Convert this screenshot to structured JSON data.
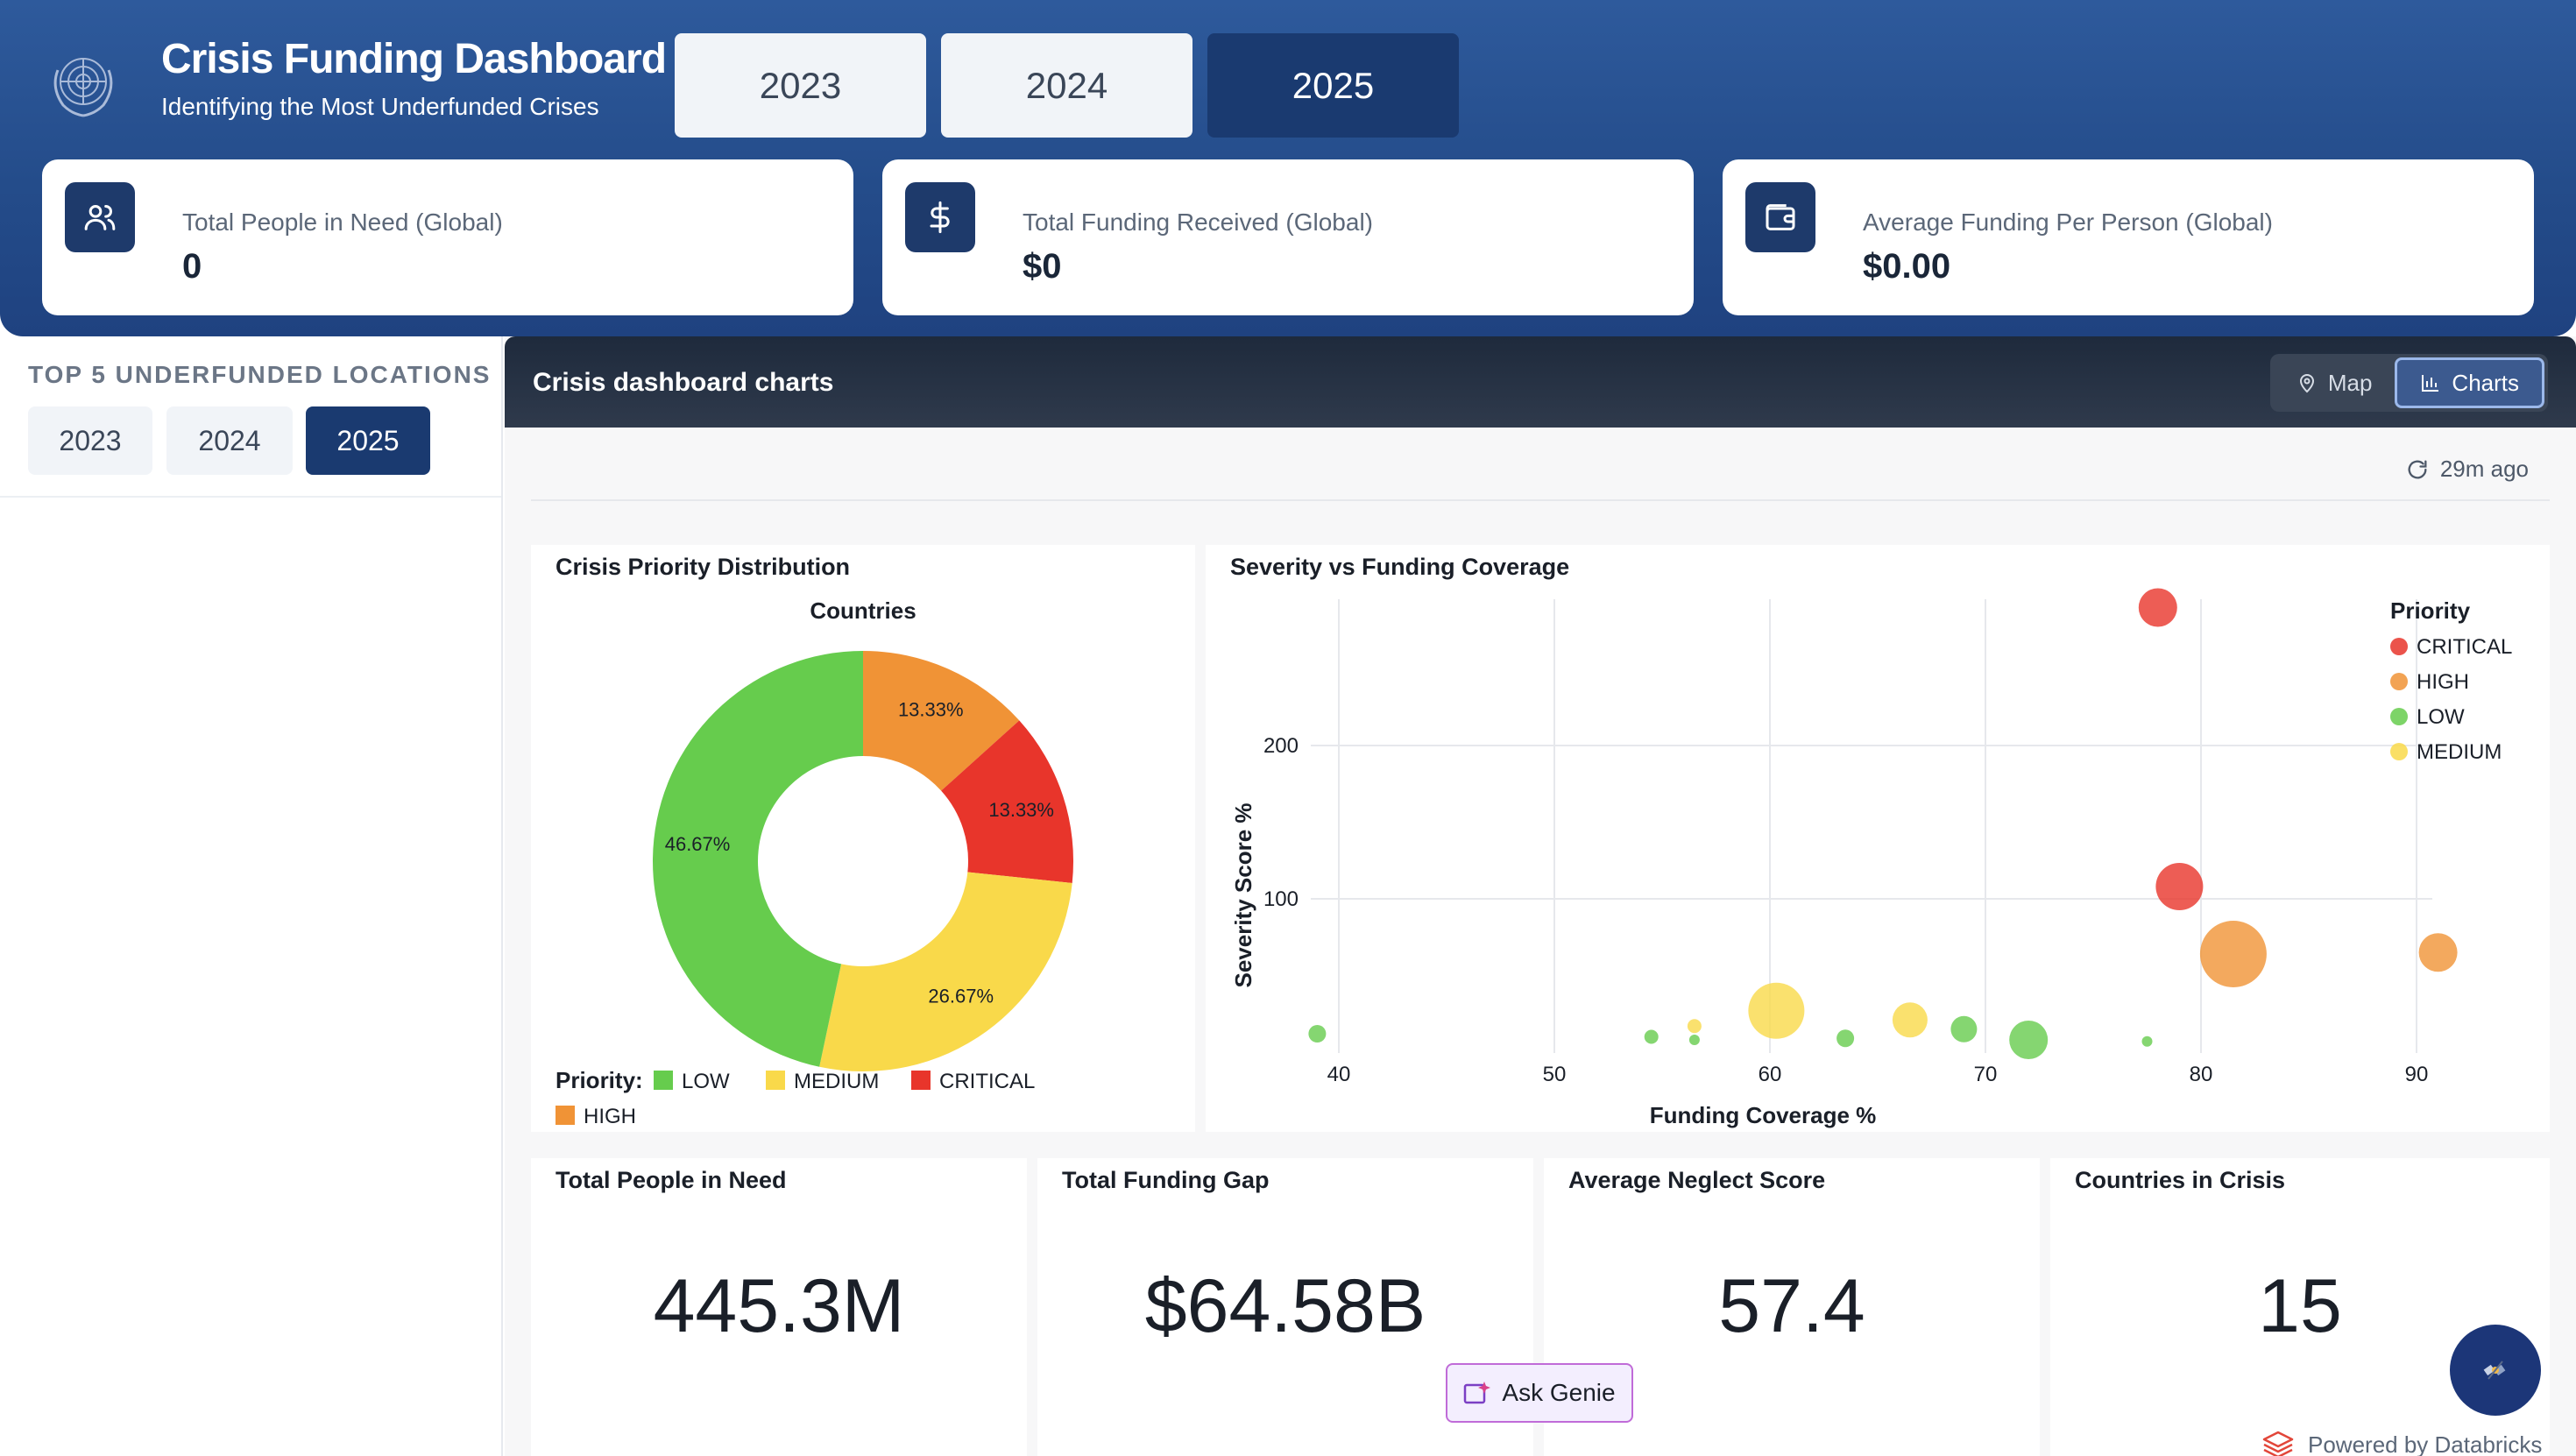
{
  "header": {
    "title": "Crisis Funding Dashboard",
    "subtitle": "Identifying the Most Underfunded Crises",
    "year_tabs": [
      {
        "label": "2023",
        "active": false
      },
      {
        "label": "2024",
        "active": false
      },
      {
        "label": "2025",
        "active": true
      }
    ]
  },
  "stats": [
    {
      "icon": "users-icon",
      "label": "Total People in Need (Global)",
      "value": "0"
    },
    {
      "icon": "dollar-icon",
      "label": "Total Funding Received (Global)",
      "value": "$0"
    },
    {
      "icon": "wallet-icon",
      "label": "Average Funding Per Person (Global)",
      "value": "$0.00"
    }
  ],
  "sidebar": {
    "title": "TOP 5 UNDERFUNDED LOCATIONS",
    "year_tabs": [
      {
        "label": "2023",
        "active": false
      },
      {
        "label": "2024",
        "active": false
      },
      {
        "label": "2025",
        "active": true
      }
    ]
  },
  "main": {
    "title": "Crisis dashboard charts",
    "toggle": {
      "map_label": "Map",
      "charts_label": "Charts",
      "active": "Charts"
    },
    "refresh_label": "29m ago"
  },
  "colors": {
    "LOW": "#66cc4d",
    "MEDIUM": "#f9d94a",
    "CRITICAL": "#e8352b",
    "HIGH": "#f09336",
    "accent": "#1a3a70"
  },
  "chart_data": [
    {
      "type": "pie",
      "title": "Crisis Priority Distribution",
      "subtitle": "Countries",
      "legend_title": "Priority:",
      "legend_position": "bottom",
      "categories": [
        "HIGH",
        "CRITICAL",
        "MEDIUM",
        "LOW"
      ],
      "values": [
        13.33,
        13.33,
        26.67,
        46.67
      ],
      "labels": [
        "13.33%",
        "13.33%",
        "26.67%",
        "46.67%"
      ],
      "legend": [
        "LOW",
        "MEDIUM",
        "CRITICAL",
        "HIGH"
      ],
      "donut": true
    },
    {
      "type": "scatter",
      "title": "Severity vs Funding Coverage",
      "xlabel": "Funding Coverage %",
      "ylabel": "Severity Score %",
      "xlim": [
        38,
        91
      ],
      "ylim": [
        0,
        290
      ],
      "xticks": [
        40,
        50,
        60,
        70,
        80,
        90
      ],
      "yticks": [
        100,
        200
      ],
      "grid": true,
      "legend_title": "Priority",
      "legend_position": "top-right",
      "series": [
        {
          "name": "CRITICAL",
          "points": [
            {
              "x": 78,
              "y": 290,
              "size": 22
            },
            {
              "x": 79,
              "y": 108,
              "size": 27
            }
          ]
        },
        {
          "name": "HIGH",
          "points": [
            {
              "x": 81.5,
              "y": 64,
              "size": 38
            },
            {
              "x": 91,
              "y": 65,
              "size": 22
            }
          ]
        },
        {
          "name": "LOW",
          "points": [
            {
              "x": 39,
              "y": 12,
              "size": 10
            },
            {
              "x": 54.5,
              "y": 10,
              "size": 8
            },
            {
              "x": 56.5,
              "y": 8,
              "size": 6
            },
            {
              "x": 63.5,
              "y": 9,
              "size": 10
            },
            {
              "x": 69,
              "y": 15,
              "size": 15
            },
            {
              "x": 72,
              "y": 8,
              "size": 22
            },
            {
              "x": 77.5,
              "y": 7,
              "size": 6
            }
          ]
        },
        {
          "name": "MEDIUM",
          "points": [
            {
              "x": 56.5,
              "y": 17,
              "size": 8
            },
            {
              "x": 60.3,
              "y": 27,
              "size": 32
            },
            {
              "x": 66.5,
              "y": 21,
              "size": 20
            }
          ]
        }
      ]
    }
  ],
  "kpis": [
    {
      "title": "Total People in Need",
      "value": "445.3M"
    },
    {
      "title": "Total Funding Gap",
      "value": "$64.58B"
    },
    {
      "title": "Average Neglect Score",
      "value": "57.4"
    },
    {
      "title": "Countries in Crisis",
      "value": "15"
    }
  ],
  "footer": {
    "ask_genie_label": "Ask Genie",
    "powered_by": "Powered by Databricks"
  }
}
